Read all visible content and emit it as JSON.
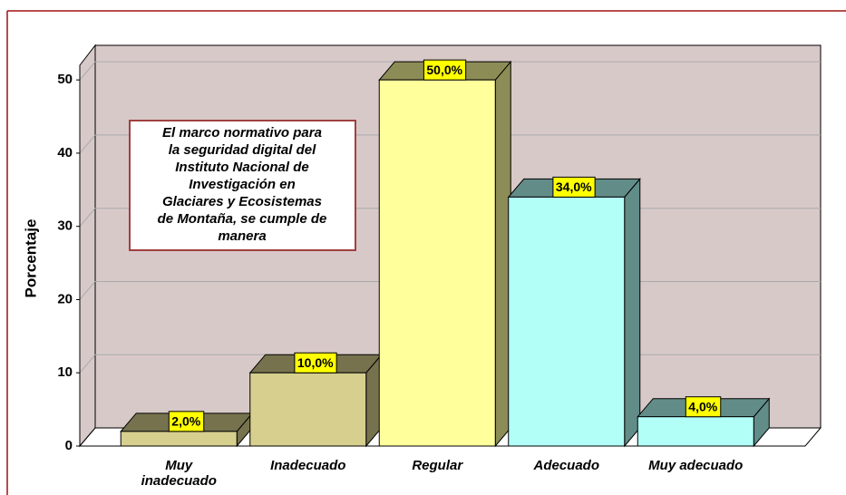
{
  "chart_data": {
    "type": "bar3d",
    "categories": [
      "Muy inadecuado",
      "Inadecuado",
      "Regular",
      "Adecuado",
      "Muy adecuado"
    ],
    "values": [
      2,
      10,
      50,
      34,
      4
    ],
    "value_labels": [
      "2,0%",
      "10,0%",
      "50,0%",
      "34,0%",
      "4,0%"
    ],
    "colors": [
      "#d6cf8e",
      "#d6cf8e",
      "#ffff9c",
      "#b2fff8",
      "#b2fff8"
    ],
    "ylabel": "Porcentaje",
    "ylim": [
      0,
      52
    ],
    "yticks": [
      0,
      10,
      20,
      30,
      40,
      50
    ],
    "grid": true,
    "annotation": [
      "El marco normativo para",
      "la seguridad digital del",
      "Instituto Nacional de",
      "Investigación en",
      "Glaciares y Ecosistemas",
      "de Montaña, se cumple de",
      "manera"
    ]
  }
}
